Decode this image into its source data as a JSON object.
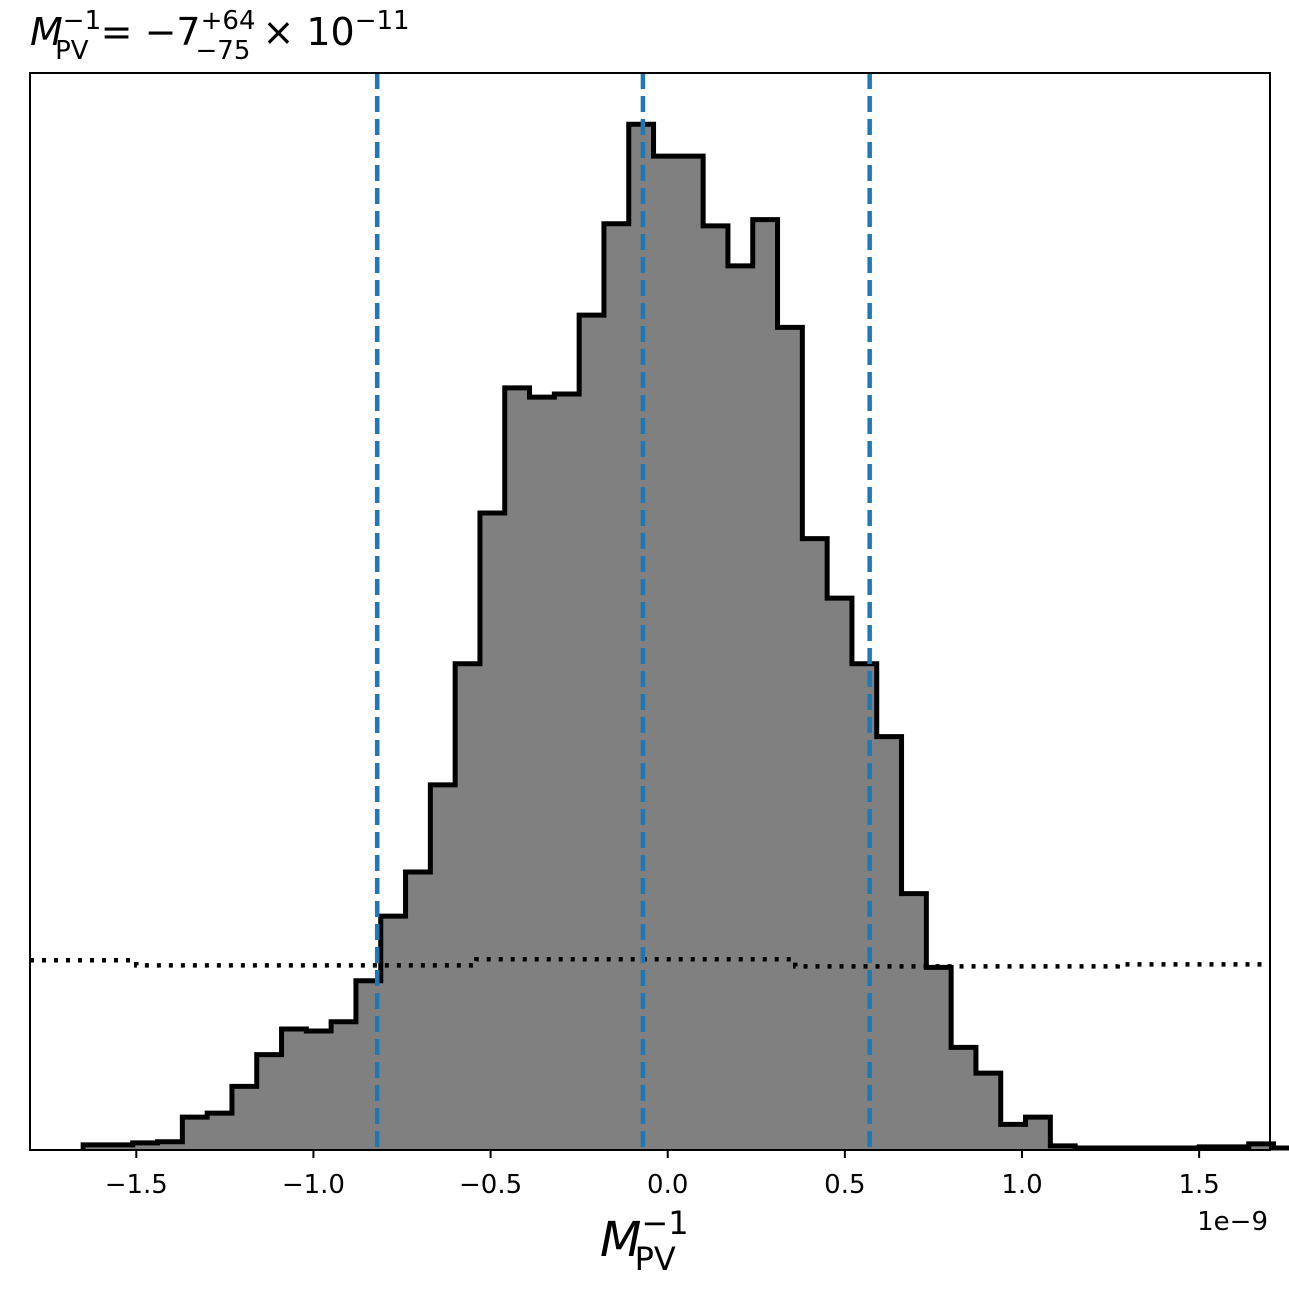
{
  "chart_data": {
    "type": "histogram",
    "title": {
      "lhs_base": "M",
      "lhs_sub": "PV",
      "lhs_sup": "−1",
      "equals": " = ",
      "median": "−7",
      "upper_err": "+64",
      "lower_err": "−75",
      "times_exponent_base": " × 10",
      "exponent": "−11"
    },
    "xlabel": {
      "base": "M",
      "sub": "PV",
      "sup": "−1"
    },
    "x_offset_text": "1e−9",
    "xlim": [
      -1.8,
      1.7
    ],
    "ylim": [
      0,
      1.05
    ],
    "xticks": [
      -1.5,
      -1.0,
      -0.5,
      0.0,
      0.5,
      1.0,
      1.5
    ],
    "xtick_labels": [
      "−1.5",
      "−1.0",
      "−0.5",
      "0.0",
      "0.5",
      "1.0",
      "1.5"
    ],
    "bin_width": 0.07,
    "bin_start": -1.65,
    "posterior_counts": [
      0.005,
      0.005,
      0.007,
      0.008,
      0.032,
      0.036,
      0.062,
      0.093,
      0.118,
      0.116,
      0.125,
      0.165,
      0.228,
      0.271,
      0.356,
      0.474,
      0.621,
      0.743,
      0.734,
      0.737,
      0.814,
      0.903,
      1.0,
      0.969,
      0.969,
      0.901,
      0.862,
      0.907,
      0.802,
      0.596,
      0.538,
      0.474,
      0.403,
      0.25,
      0.178,
      0.1,
      0.075,
      0.025,
      0.032,
      0.004,
      0.002,
      0.002,
      0.002,
      0.002,
      0.002,
      0.003,
      0.003,
      0.006,
      0.002
    ],
    "prior": [
      {
        "x0": -1.8,
        "x1": -1.5,
        "y": 0.185
      },
      {
        "x0": -1.5,
        "x1": -0.54,
        "y": 0.18
      },
      {
        "x0": -0.54,
        "x1": 0.36,
        "y": 0.186
      },
      {
        "x0": 0.36,
        "x1": 1.27,
        "y": 0.179
      },
      {
        "x0": 1.27,
        "x1": 1.7,
        "y": 0.181
      }
    ],
    "quantiles": [
      -0.82,
      -0.07,
      0.57
    ],
    "colors": {
      "hist_fill": "#808080",
      "hist_edge": "#000000",
      "quantile": "#1f77b4",
      "prior": "#000000"
    }
  }
}
